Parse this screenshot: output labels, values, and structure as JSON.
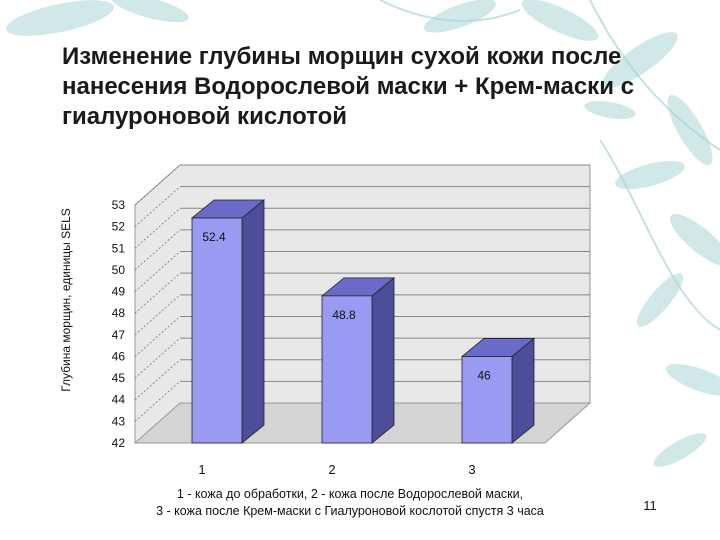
{
  "slide": {
    "title": "Изменение глубины морщин сухой кожи после нанесения Водорослевой маски + Крем-маски с гиалуроновой кислотой",
    "footnote_line1": "1 - кожа до обработки, 2 - кожа после Водорослевой маски,",
    "footnote_line2": "3 - кожа после Крем-маски с Гиалуроновой кослотой спустя 3 часа",
    "page_number": "11"
  },
  "colors": {
    "bar_front": "#9a9af2",
    "bar_side": "#4d4d9a",
    "bar_top": "#6a6ac8",
    "wall": "#e8e8e8",
    "floor": "#d4d4d4",
    "decoration": "#a9d6d6"
  },
  "chart_data": {
    "type": "bar",
    "title": "",
    "xlabel": "",
    "ylabel": "Глубина морщин, единицы SELS",
    "categories": [
      "1",
      "2",
      "3"
    ],
    "values": [
      52.4,
      48.8,
      46
    ],
    "value_labels": [
      "52.4",
      "48.8",
      "46"
    ],
    "ylim": [
      42,
      53
    ],
    "yticks": [
      42,
      43,
      44,
      45,
      46,
      47,
      48,
      49,
      50,
      51,
      52,
      53
    ],
    "grid": true,
    "legend": "none",
    "style": "3d"
  }
}
